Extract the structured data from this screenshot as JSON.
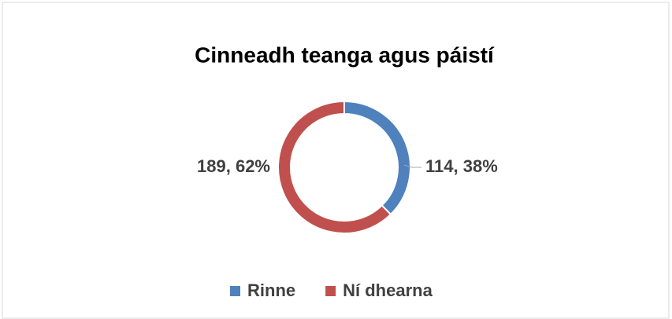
{
  "chart_data": {
    "type": "donut",
    "title": "Cinneadh teanga agus páistí",
    "categories": [
      "Rinne",
      "Ní dhearna"
    ],
    "values": [
      114,
      189
    ],
    "value_labels": [
      "114, 38%",
      "189, 62%"
    ],
    "colors": [
      "#4f81bd",
      "#c0504d"
    ],
    "legend": "bottom"
  }
}
